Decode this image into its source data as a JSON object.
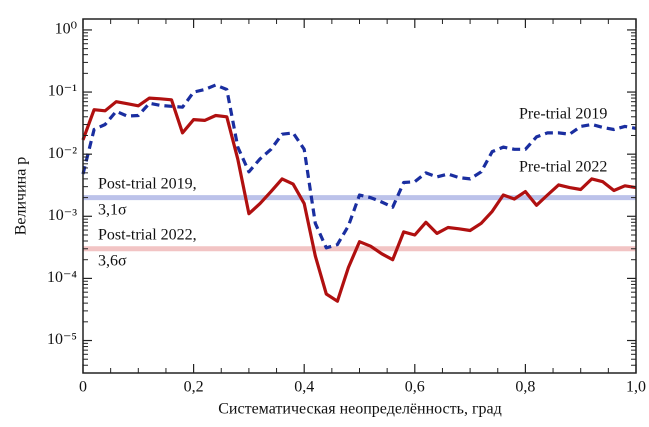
{
  "chart_data": {
    "type": "line",
    "xlabel": "Систематическая неопределённость, град",
    "ylabel": "Величина p",
    "log_y": true,
    "xlim": [
      0,
      1
    ],
    "ylim": [
      3e-06,
      1.5
    ],
    "xticks": [
      0,
      {
        "value": 0.2,
        "label": "0,2"
      },
      {
        "value": 0.4,
        "label": "0,4"
      },
      {
        "value": 0.6,
        "label": "0,6"
      },
      {
        "value": 0.8,
        "label": "0,8"
      },
      {
        "value": 1,
        "label": "1,0"
      }
    ],
    "yticks": [
      {
        "value": 1,
        "label": "10⁰"
      },
      {
        "value": 0.1,
        "label": "10⁻¹"
      },
      {
        "value": 0.01,
        "label": "10⁻²"
      },
      {
        "value": 0.001,
        "label": "10⁻³"
      },
      {
        "value": 0.0001,
        "label": "10⁻⁴"
      },
      {
        "value": 1e-05,
        "label": "10⁻⁵"
      }
    ],
    "x": [
      0,
      0.02,
      0.04,
      0.06,
      0.08,
      0.1,
      0.12,
      0.14,
      0.16,
      0.18,
      0.2,
      0.22,
      0.24,
      0.26,
      0.28,
      0.3,
      0.32,
      0.34,
      0.36,
      0.38,
      0.4,
      0.42,
      0.44,
      0.46,
      0.48,
      0.5,
      0.52,
      0.54,
      0.56,
      0.58,
      0.6,
      0.62,
      0.64,
      0.66,
      0.68,
      0.7,
      0.72,
      0.74,
      0.76,
      0.78,
      0.8,
      0.82,
      0.84,
      0.86,
      0.88,
      0.9,
      0.92,
      0.94,
      0.96,
      0.98,
      1
    ],
    "series": [
      {
        "name": "Pre-trial 2019",
        "color": "#1a2ea0",
        "dashed": true,
        "values": [
          0.0048,
          0.025,
          0.03,
          0.049,
          0.041,
          0.042,
          0.066,
          0.061,
          0.059,
          0.057,
          0.1,
          0.11,
          0.13,
          0.11,
          0.013,
          0.0052,
          0.0084,
          0.012,
          0.021,
          0.022,
          0.012,
          0.00077,
          0.00031,
          0.00035,
          0.0007,
          0.0022,
          0.002,
          0.0017,
          0.0014,
          0.0035,
          0.0036,
          0.005,
          0.0043,
          0.0048,
          0.0042,
          0.004,
          0.0052,
          0.011,
          0.013,
          0.012,
          0.012,
          0.019,
          0.022,
          0.022,
          0.021,
          0.028,
          0.03,
          0.027,
          0.025,
          0.028,
          0.026
        ]
      },
      {
        "name": "Pre-trial 2022",
        "color": "#b01010",
        "dashed": false,
        "values": [
          0.017,
          0.052,
          0.05,
          0.07,
          0.065,
          0.06,
          0.08,
          0.078,
          0.075,
          0.022,
          0.036,
          0.035,
          0.042,
          0.04,
          0.0083,
          0.0011,
          0.0016,
          0.0025,
          0.004,
          0.0033,
          0.0016,
          0.00023,
          5.6e-05,
          4.3e-05,
          0.00015,
          0.00039,
          0.00033,
          0.00025,
          0.0002,
          0.00056,
          0.0005,
          0.0008,
          0.00053,
          0.00066,
          0.00063,
          0.00059,
          0.00077,
          0.0012,
          0.0022,
          0.0019,
          0.0025,
          0.0015,
          0.0022,
          0.0032,
          0.0029,
          0.0027,
          0.004,
          0.0036,
          0.0026,
          0.0031,
          0.0029
        ]
      }
    ],
    "reference_lines": [
      {
        "label": "Post-trial 2019,",
        "sublabel": "3,1σ",
        "value": 0.002,
        "color": "#bcc2ea"
      },
      {
        "label": "Post-trial 2022,",
        "sublabel": "3,6σ",
        "value": 0.0003,
        "color": "#f2c4c4"
      }
    ]
  }
}
